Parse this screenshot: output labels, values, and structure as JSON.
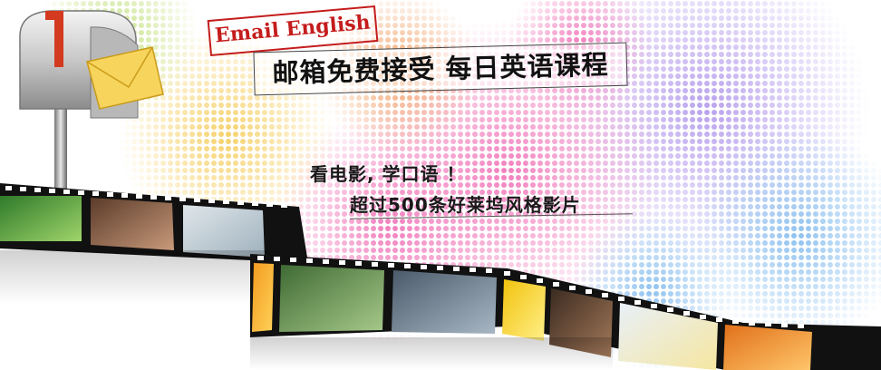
{
  "banner": {
    "tag": "Email English",
    "headline": "邮箱免费接受 每日英语课程",
    "slogan_line1": "看电影, 学口语 ！",
    "slogan_line2": "超过500条好莱坞风格影片"
  },
  "icons": [
    "mailbox-icon",
    "envelope-icon"
  ],
  "colors": {
    "tag_red": "#c41c1c",
    "film_black": "#111111",
    "dot_pink": "#f07ab8",
    "dot_purple": "#a98be0",
    "dot_yellow": "#f5d06b"
  }
}
